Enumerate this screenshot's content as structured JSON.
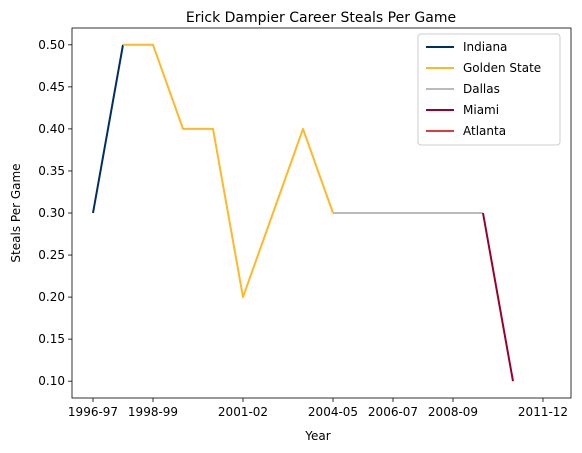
{
  "chart_data": {
    "type": "line",
    "title": "Erick Dampier Career Steals Per Game",
    "xlabel": "Year",
    "ylabel": "Steals Per Game",
    "x_tick_labels": [
      "1996-97",
      "1998-99",
      "2001-02",
      "2004-05",
      "2006-07",
      "2008-09",
      "2011-12"
    ],
    "y_ticks": [
      "0.10",
      "0.15",
      "0.20",
      "0.25",
      "0.30",
      "0.35",
      "0.40",
      "0.45",
      "0.50"
    ],
    "ylim": [
      0.08,
      0.52
    ],
    "grid": false,
    "legend_position": "top-right",
    "series": [
      {
        "name": "Indiana",
        "color": "#002D62",
        "x": [
          "1996-97",
          "1997-98"
        ],
        "y": [
          0.3,
          0.5
        ]
      },
      {
        "name": "Golden State",
        "color": "#FDB927",
        "x": [
          "1997-98",
          "1998-99",
          "1999-00",
          "2000-01",
          "2001-02",
          "2002-03",
          "2003-04",
          "2004-05"
        ],
        "y": [
          0.5,
          0.5,
          0.4,
          0.4,
          0.2,
          0.3,
          0.4,
          0.3
        ]
      },
      {
        "name": "Dallas",
        "color": "#BBBBBB",
        "x": [
          "2004-05",
          "2005-06",
          "2006-07",
          "2007-08",
          "2008-09",
          "2009-10"
        ],
        "y": [
          0.3,
          0.3,
          0.3,
          0.3,
          0.3,
          0.3
        ]
      },
      {
        "name": "Miami",
        "color": "#98002E",
        "x": [
          "2009-10",
          "2010-11"
        ],
        "y": [
          0.3,
          0.1
        ]
      },
      {
        "name": "Atlanta",
        "color": "#E03A3E",
        "x": [],
        "y": []
      }
    ]
  }
}
